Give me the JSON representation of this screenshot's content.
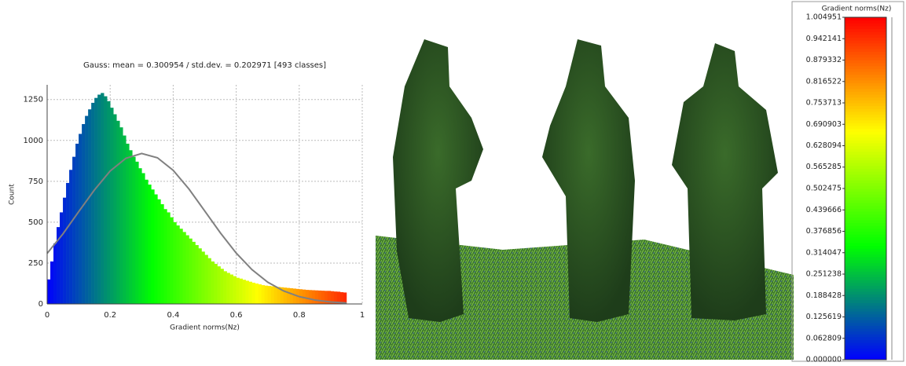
{
  "chart_data": [
    {
      "type": "histogram",
      "title": "Gauss: mean = 0.300954 / std.dev. = 0.202971 [493 classes]",
      "x_label": "Gradient norms(Nz)",
      "y_label": "Count",
      "bins": [
        0,
        0.01,
        0.02,
        0.03,
        0.04,
        0.05,
        0.06,
        0.07,
        0.08,
        0.09,
        0.1,
        0.11,
        0.12,
        0.13,
        0.14,
        0.15,
        0.16,
        0.17,
        0.18,
        0.19,
        0.2,
        0.21,
        0.22,
        0.23,
        0.24,
        0.25,
        0.26,
        0.27,
        0.28,
        0.29,
        0.3,
        0.31,
        0.32,
        0.33,
        0.34,
        0.35,
        0.36,
        0.37,
        0.38,
        0.39,
        0.4,
        0.41,
        0.42,
        0.43,
        0.44,
        0.45,
        0.46,
        0.47,
        0.48,
        0.49,
        0.5,
        0.51,
        0.52,
        0.53,
        0.54,
        0.55,
        0.56,
        0.57,
        0.58,
        0.59,
        0.6,
        0.61,
        0.62,
        0.63,
        0.64,
        0.65,
        0.66,
        0.67,
        0.68,
        0.69,
        0.7,
        0.71,
        0.72,
        0.73,
        0.74,
        0.75,
        0.76,
        0.77,
        0.78,
        0.79,
        0.8,
        0.81,
        0.82,
        0.83,
        0.84,
        0.85,
        0.86,
        0.87,
        0.88,
        0.89,
        0.9,
        0.91,
        0.92,
        0.93,
        0.94,
        0.95
      ],
      "values": [
        150,
        260,
        370,
        470,
        560,
        650,
        740,
        820,
        900,
        980,
        1040,
        1100,
        1150,
        1190,
        1230,
        1260,
        1280,
        1290,
        1270,
        1240,
        1200,
        1160,
        1120,
        1080,
        1030,
        980,
        940,
        900,
        870,
        830,
        800,
        760,
        730,
        700,
        670,
        640,
        610,
        580,
        560,
        530,
        500,
        480,
        460,
        440,
        420,
        400,
        380,
        360,
        340,
        320,
        300,
        280,
        260,
        245,
        230,
        215,
        200,
        190,
        180,
        170,
        160,
        155,
        148,
        142,
        136,
        130,
        125,
        120,
        115,
        112,
        110,
        108,
        106,
        104,
        102,
        100,
        98,
        96,
        94,
        92,
        90,
        88,
        86,
        85,
        84,
        83,
        82,
        81,
        80,
        80,
        78,
        76,
        75,
        72,
        70
      ],
      "colormap": [
        "#0000ff",
        "#00ff00",
        "#ffff00",
        "#ff0000"
      ],
      "line": {
        "color": "#808080",
        "x": [
          0,
          0.05,
          0.1,
          0.15,
          0.2,
          0.25,
          0.3,
          0.35,
          0.4,
          0.45,
          0.5,
          0.55,
          0.6,
          0.65,
          0.7,
          0.75,
          0.8,
          0.85,
          0.9,
          0.95
        ],
        "values": [
          309,
          428,
          564,
          697,
          813,
          891,
          920,
          894,
          817,
          703,
          569,
          434,
          311,
          210,
          133,
          80,
          45,
          24,
          12,
          6
        ]
      },
      "xlim": [
        0,
        1
      ],
      "xticks": [
        0,
        0.2,
        0.4,
        0.6,
        0.8,
        1
      ],
      "ylim": [
        0,
        1340
      ],
      "yticks": [
        0,
        250,
        500,
        750,
        1000,
        1250
      ],
      "grid": true
    },
    {
      "type": "colorbar",
      "title": "Gradient norms(Nz)",
      "ylim": [
        0,
        1.004951
      ],
      "yticks": [
        {
          "value": 0,
          "label": "0.000000"
        },
        0.062809,
        0.125619,
        0.188428,
        0.251238,
        0.314047,
        0.376856,
        0.439666,
        0.502475,
        0.565285,
        0.628094,
        0.690903,
        0.753713,
        0.816522,
        0.879332,
        0.942141,
        1.004951
      ],
      "colormap": [
        "#0000ff",
        "#00ff00",
        "#ffff00",
        "#ff0000"
      ]
    }
  ]
}
